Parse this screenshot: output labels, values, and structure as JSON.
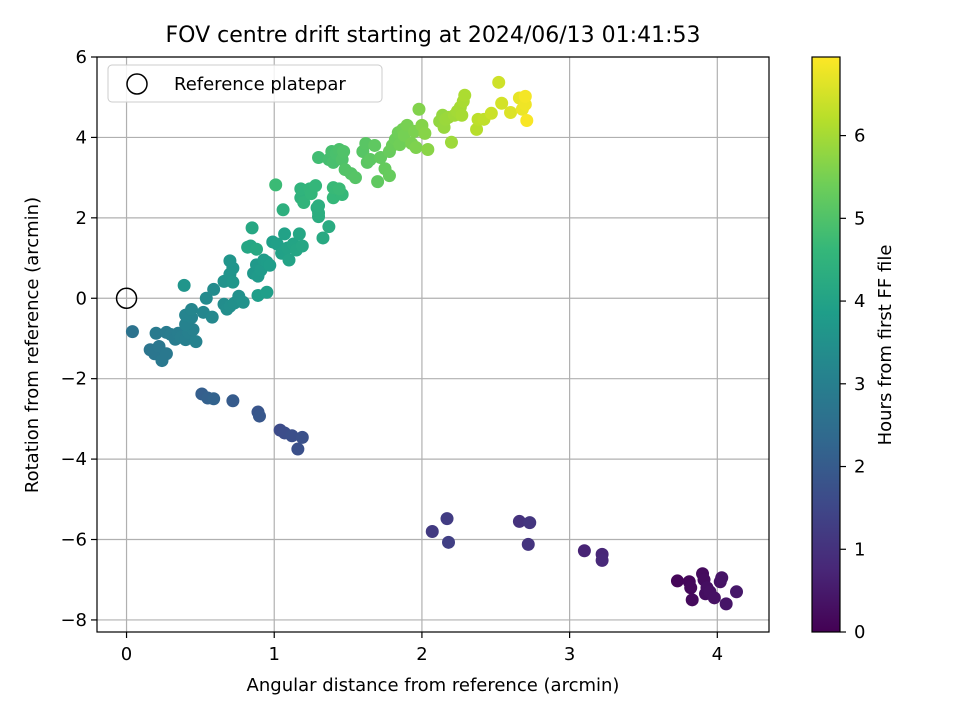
{
  "chart_data": {
    "type": "scatter",
    "title": "FOV centre drift starting at 2024/06/13 01:41:53",
    "xlabel": "Angular distance from reference (arcmin)",
    "ylabel": "Rotation from reference (arcmin)",
    "xlim": [
      -0.2,
      4.35
    ],
    "ylim": [
      -8.3,
      6.0
    ],
    "x_ticks": [
      0,
      1,
      2,
      3,
      4
    ],
    "x_tick_labels": [
      "0",
      "1",
      "2",
      "3",
      "4"
    ],
    "y_ticks": [
      -8,
      -6,
      -4,
      -2,
      0,
      2,
      4,
      6
    ],
    "y_tick_labels": [
      "−8",
      "−6",
      "−4",
      "−2",
      "0",
      "2",
      "4",
      "6"
    ],
    "grid": true,
    "legend": {
      "placement": "upper-left",
      "entries": [
        {
          "label": "Reference platepar",
          "marker": "open-circle"
        }
      ]
    },
    "reference_point": {
      "x": 0,
      "y": 0
    },
    "colorbar": {
      "label": "Hours from first FF file",
      "colormap": "viridis",
      "range": [
        0,
        6.95
      ],
      "ticks": [
        0,
        1,
        2,
        3,
        4,
        5,
        6
      ],
      "tick_labels": [
        "0",
        "1",
        "2",
        "3",
        "4",
        "5",
        "6"
      ]
    },
    "colormap_stops": [
      "#440154",
      "#482878",
      "#3e4989",
      "#31688e",
      "#26828e",
      "#1f9e89",
      "#35b779",
      "#6ece58",
      "#b5de2b",
      "#fde725"
    ],
    "points": [
      [
        3.73,
        -7.03,
        0.1
      ],
      [
        3.81,
        -7.05,
        0.12
      ],
      [
        3.82,
        -7.2,
        0.15
      ],
      [
        3.83,
        -7.5,
        0.18
      ],
      [
        3.9,
        -6.85,
        0.2
      ],
      [
        3.91,
        -7.0,
        0.22
      ],
      [
        3.92,
        -7.35,
        0.25
      ],
      [
        3.93,
        -7.2,
        0.28
      ],
      [
        3.95,
        -7.3,
        0.3
      ],
      [
        3.98,
        -7.45,
        0.32
      ],
      [
        4.02,
        -7.05,
        0.35
      ],
      [
        4.03,
        -6.95,
        0.38
      ],
      [
        4.06,
        -7.6,
        0.4
      ],
      [
        4.13,
        -7.3,
        0.45
      ],
      [
        3.1,
        -6.28,
        0.7
      ],
      [
        3.22,
        -6.37,
        0.75
      ],
      [
        3.22,
        -6.52,
        0.8
      ],
      [
        2.66,
        -5.55,
        1.0
      ],
      [
        2.72,
        -6.12,
        1.05
      ],
      [
        2.73,
        -5.58,
        1.1
      ],
      [
        2.07,
        -5.8,
        1.2
      ],
      [
        2.17,
        -5.48,
        1.25
      ],
      [
        2.18,
        -6.07,
        1.3
      ],
      [
        1.04,
        -3.28,
        1.6
      ],
      [
        1.07,
        -3.35,
        1.65
      ],
      [
        1.12,
        -3.42,
        1.7
      ],
      [
        1.16,
        -3.75,
        1.72
      ],
      [
        1.19,
        -3.46,
        1.75
      ],
      [
        0.89,
        -2.83,
        1.85
      ],
      [
        0.9,
        -2.93,
        1.9
      ],
      [
        0.72,
        -2.55,
        2.0
      ],
      [
        0.51,
        -2.38,
        2.1
      ],
      [
        0.55,
        -2.48,
        2.15
      ],
      [
        0.59,
        -2.5,
        2.2
      ],
      [
        0.04,
        -0.83,
        2.65
      ],
      [
        0.16,
        -1.28,
        2.7
      ],
      [
        0.19,
        -1.38,
        2.72
      ],
      [
        0.22,
        -1.2,
        2.75
      ],
      [
        0.24,
        -1.55,
        2.78
      ],
      [
        0.27,
        -1.38,
        2.8
      ],
      [
        0.2,
        -0.87,
        2.85
      ],
      [
        0.27,
        -0.85,
        2.88
      ],
      [
        0.3,
        -0.9,
        2.9
      ],
      [
        0.33,
        -1.02,
        2.92
      ],
      [
        0.35,
        -0.87,
        2.95
      ],
      [
        0.37,
        -0.97,
        2.98
      ],
      [
        0.4,
        -1.03,
        3.0
      ],
      [
        0.42,
        -0.85,
        3.02
      ],
      [
        0.45,
        -0.78,
        3.05
      ],
      [
        0.47,
        -1.08,
        3.08
      ],
      [
        0.4,
        -0.65,
        3.1
      ],
      [
        0.44,
        -0.48,
        3.12
      ],
      [
        0.4,
        -0.42,
        3.15
      ],
      [
        0.44,
        -0.28,
        3.18
      ],
      [
        0.52,
        -0.35,
        3.2
      ],
      [
        0.58,
        -0.47,
        3.25
      ],
      [
        0.54,
        0.0,
        3.3
      ],
      [
        0.59,
        0.22,
        3.35
      ],
      [
        0.66,
        -0.15,
        3.4
      ],
      [
        0.68,
        -0.27,
        3.42
      ],
      [
        0.7,
        -0.2,
        3.45
      ],
      [
        0.73,
        -0.12,
        3.48
      ],
      [
        0.76,
        0.05,
        3.5
      ],
      [
        0.79,
        -0.1,
        3.52
      ],
      [
        0.66,
        0.42,
        3.55
      ],
      [
        0.7,
        0.6,
        3.58
      ],
      [
        0.72,
        0.75,
        3.6
      ],
      [
        0.7,
        0.93,
        3.62
      ],
      [
        0.72,
        0.4,
        3.65
      ],
      [
        0.86,
        0.62,
        3.7
      ],
      [
        0.88,
        0.83,
        3.72
      ],
      [
        0.89,
        0.55,
        3.75
      ],
      [
        0.91,
        0.7,
        3.78
      ],
      [
        0.93,
        0.95,
        3.8
      ],
      [
        0.95,
        0.9,
        3.82
      ],
      [
        0.97,
        0.82,
        3.85
      ],
      [
        0.89,
        0.07,
        3.85
      ],
      [
        0.95,
        0.15,
        3.88
      ],
      [
        0.39,
        0.32,
        3.6
      ],
      [
        0.99,
        1.4,
        3.9
      ],
      [
        1.02,
        1.35,
        3.92
      ],
      [
        1.05,
        1.12,
        3.95
      ],
      [
        1.07,
        1.6,
        3.98
      ],
      [
        1.09,
        1.25,
        4.0
      ],
      [
        1.1,
        0.95,
        4.02
      ],
      [
        1.13,
        1.35,
        4.05
      ],
      [
        1.15,
        1.2,
        4.08
      ],
      [
        1.19,
        1.3,
        4.1
      ],
      [
        1.17,
        1.6,
        4.12
      ],
      [
        0.82,
        1.27,
        4.1
      ],
      [
        0.84,
        1.3,
        4.12
      ],
      [
        0.85,
        1.75,
        4.15
      ],
      [
        0.88,
        1.22,
        4.18
      ],
      [
        1.33,
        1.5,
        4.2
      ],
      [
        1.37,
        1.78,
        4.25
      ],
      [
        1.29,
        2.25,
        4.28
      ],
      [
        1.3,
        2.03,
        4.3
      ],
      [
        1.3,
        2.12,
        4.32
      ],
      [
        1.3,
        2.3,
        4.35
      ],
      [
        1.06,
        2.2,
        4.4
      ],
      [
        1.18,
        2.5,
        4.45
      ],
      [
        1.18,
        2.72,
        4.5
      ],
      [
        1.2,
        2.38,
        4.52
      ],
      [
        1.24,
        2.72,
        4.55
      ],
      [
        1.25,
        2.6,
        4.58
      ],
      [
        1.28,
        2.8,
        4.6
      ],
      [
        1.4,
        2.5,
        4.62
      ],
      [
        1.46,
        2.58,
        4.65
      ],
      [
        1.4,
        2.75,
        4.68
      ],
      [
        1.44,
        2.72,
        4.7
      ],
      [
        1.01,
        2.82,
        4.72
      ],
      [
        1.3,
        3.5,
        4.8
      ],
      [
        1.37,
        3.45,
        4.85
      ],
      [
        1.39,
        3.65,
        4.88
      ],
      [
        1.4,
        3.38,
        4.9
      ],
      [
        1.42,
        3.6,
        4.92
      ],
      [
        1.44,
        3.7,
        4.95
      ],
      [
        1.46,
        3.45,
        4.98
      ],
      [
        1.47,
        3.65,
        5.0
      ],
      [
        1.48,
        3.2,
        5.02
      ],
      [
        1.52,
        3.1,
        5.05
      ],
      [
        1.55,
        3.0,
        5.08
      ],
      [
        1.6,
        3.65,
        5.1
      ],
      [
        1.62,
        3.85,
        5.12
      ],
      [
        1.63,
        3.38,
        5.15
      ],
      [
        1.65,
        3.45,
        5.18
      ],
      [
        1.68,
        3.8,
        5.2
      ],
      [
        1.7,
        2.9,
        5.22
      ],
      [
        1.72,
        3.5,
        5.25
      ],
      [
        1.75,
        3.22,
        5.28
      ],
      [
        1.78,
        3.05,
        5.3
      ],
      [
        1.78,
        3.65,
        5.32
      ],
      [
        1.8,
        3.8,
        5.35
      ],
      [
        1.82,
        3.95,
        5.38
      ],
      [
        1.84,
        4.12,
        5.4
      ],
      [
        1.85,
        3.82,
        5.42
      ],
      [
        1.87,
        4.2,
        5.45
      ],
      [
        1.88,
        4.05,
        5.48
      ],
      [
        1.9,
        4.3,
        5.5
      ],
      [
        1.93,
        3.85,
        5.52
      ],
      [
        1.95,
        4.15,
        5.55
      ],
      [
        1.96,
        3.75,
        5.58
      ],
      [
        1.98,
        4.7,
        5.62
      ],
      [
        2.0,
        4.3,
        5.65
      ],
      [
        2.02,
        4.1,
        5.68
      ],
      [
        2.04,
        3.7,
        5.7
      ],
      [
        2.12,
        4.4,
        5.8
      ],
      [
        2.14,
        4.55,
        5.82
      ],
      [
        2.15,
        4.25,
        5.85
      ],
      [
        2.16,
        4.45,
        5.88
      ],
      [
        2.18,
        4.5,
        5.9
      ],
      [
        2.2,
        3.88,
        5.92
      ],
      [
        2.22,
        4.55,
        5.95
      ],
      [
        2.24,
        4.65,
        5.98
      ],
      [
        2.26,
        4.75,
        6.0
      ],
      [
        2.27,
        4.55,
        6.02
      ],
      [
        2.28,
        4.9,
        6.05
      ],
      [
        2.29,
        5.05,
        6.08
      ],
      [
        2.37,
        4.2,
        6.2
      ],
      [
        2.38,
        4.45,
        6.25
      ],
      [
        2.42,
        4.45,
        6.3
      ],
      [
        2.47,
        4.6,
        6.4
      ],
      [
        2.52,
        5.37,
        6.45
      ],
      [
        2.54,
        4.85,
        6.5
      ],
      [
        2.6,
        4.62,
        6.6
      ],
      [
        2.66,
        4.98,
        6.7
      ],
      [
        2.68,
        4.7,
        6.75
      ],
      [
        2.7,
        4.82,
        6.8
      ],
      [
        2.7,
        5.02,
        6.85
      ],
      [
        2.71,
        4.42,
        6.9
      ]
    ]
  }
}
